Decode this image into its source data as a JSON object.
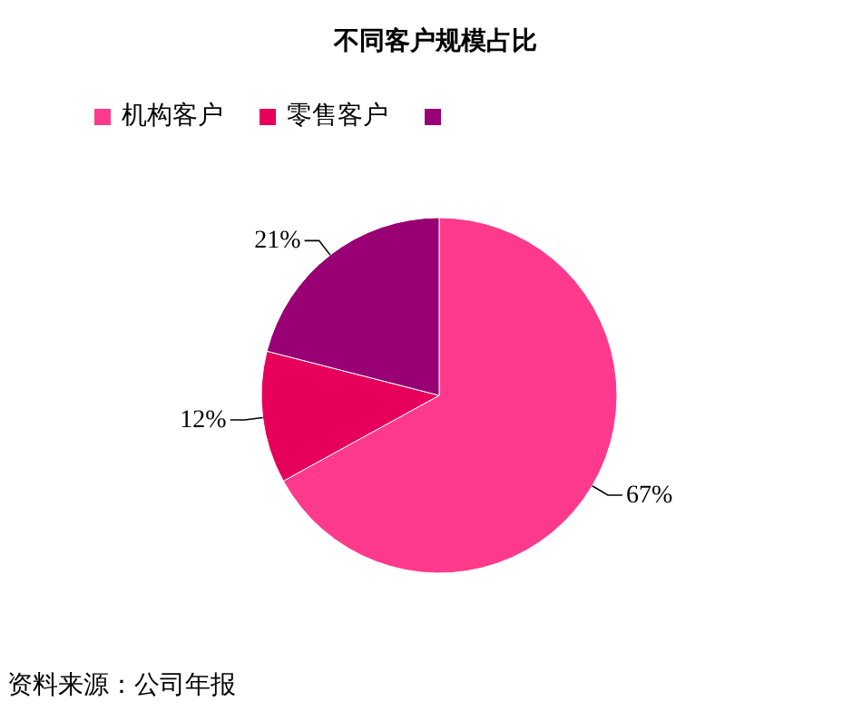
{
  "chart_data": {
    "type": "pie",
    "title": "不同客户规模占比",
    "categories": [
      "机构客户",
      "零售客户",
      null
    ],
    "values": [
      67,
      12,
      21
    ],
    "value_labels": [
      "67%",
      "12%",
      "21%"
    ],
    "colors": [
      "#ff3a8c",
      "#e6005c",
      "#990073"
    ],
    "legend": "top",
    "annotations": [
      "资料来源：公司年报"
    ]
  }
}
